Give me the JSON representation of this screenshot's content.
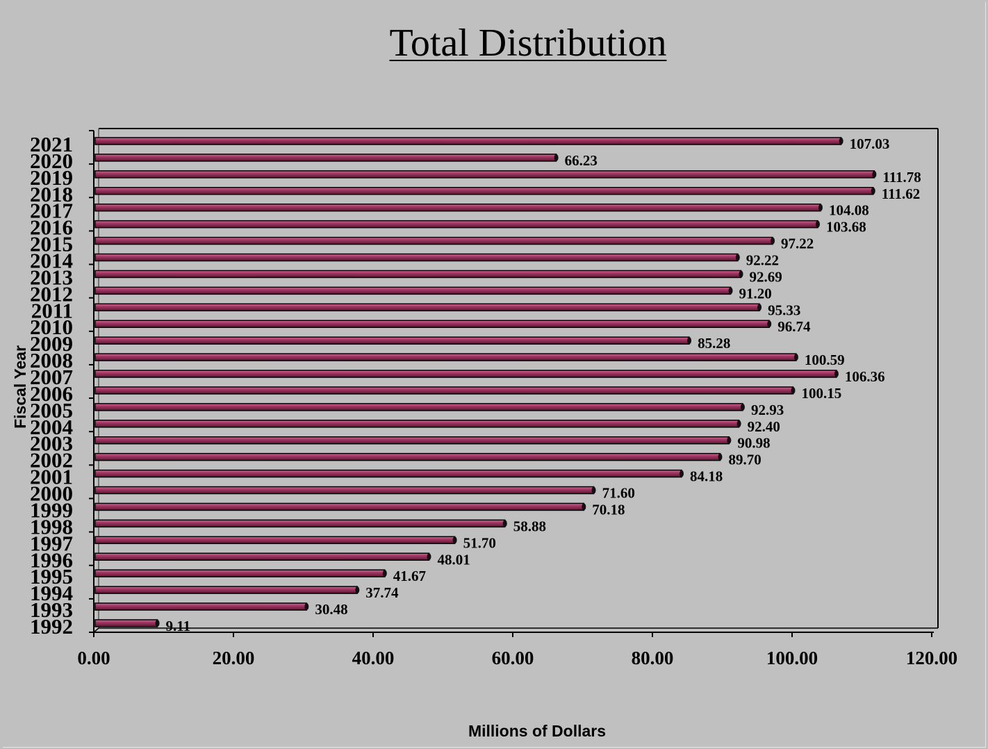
{
  "chart_data": {
    "type": "bar",
    "orientation": "horizontal",
    "title": "Total Distribution",
    "xlabel": "Millions of Dollars",
    "ylabel": "Fiscal Year",
    "xlim": [
      0,
      120
    ],
    "xticks": [
      "0.00",
      "20.00",
      "40.00",
      "60.00",
      "80.00",
      "100.00",
      "120.00"
    ],
    "categories": [
      "2021",
      "2020",
      "2019",
      "2018",
      "2017",
      "2016",
      "2015",
      "2014",
      "2013",
      "2012",
      "2011",
      "2010",
      "2009",
      "2008",
      "2007",
      "2006",
      "2005",
      "2004",
      "2003",
      "2002",
      "2001",
      "2000",
      "1999",
      "1998",
      "1997",
      "1996",
      "1995",
      "1994",
      "1993",
      "1992"
    ],
    "values": [
      107.03,
      66.23,
      111.78,
      111.62,
      104.08,
      103.68,
      97.22,
      92.22,
      92.69,
      91.2,
      95.33,
      96.74,
      85.28,
      100.59,
      106.36,
      100.15,
      92.93,
      92.4,
      90.98,
      89.7,
      84.18,
      71.6,
      70.18,
      58.88,
      51.7,
      48.01,
      41.67,
      37.74,
      30.48,
      9.11
    ],
    "data_labels": [
      "107.03",
      "66.23",
      "111.78",
      "111.62",
      "104.08",
      "103.68",
      "97.22",
      "92.22",
      "92.69",
      "91.20",
      "95.33",
      "96.74",
      "85.28",
      "100.59",
      "106.36",
      "100.15",
      "92.93",
      "92.40",
      "90.98",
      "89.70",
      "84.18",
      "71.60",
      "70.18",
      "58.88",
      "51.70",
      "48.01",
      "41.67",
      "37.74",
      "30.48",
      "9.11"
    ],
    "bar_color": "#8b2a55",
    "grid": false,
    "legend": "none"
  }
}
